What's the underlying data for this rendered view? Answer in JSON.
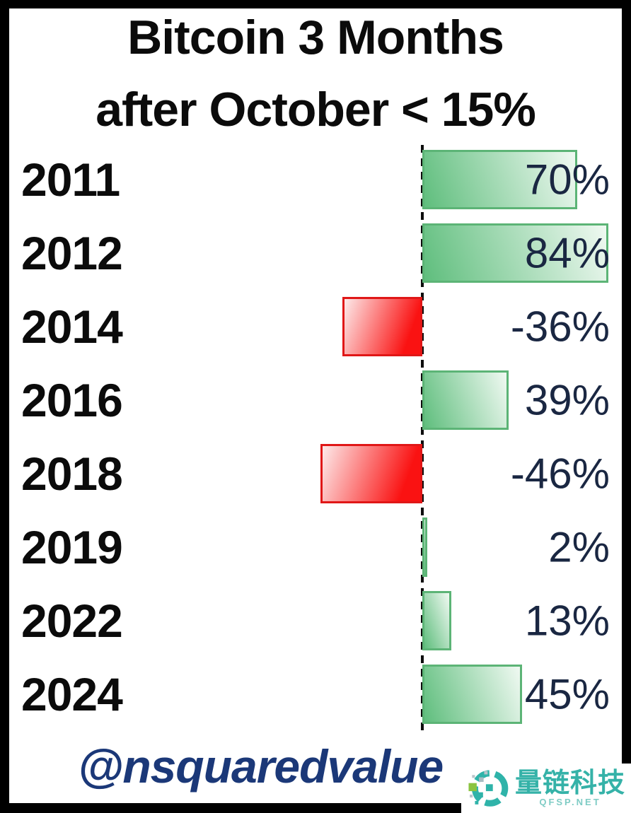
{
  "title": {
    "line1": "Bitcoin 3 Months",
    "line2": "after October < 15%"
  },
  "watermark": {
    "handle": "@nsquaredvalue",
    "color": "#1b3878"
  },
  "logo": {
    "name": "量链科技",
    "site": "QFSP.NET",
    "teal": "#35b2a8",
    "site_color": "#7fccc5",
    "green": "#8bc440"
  },
  "chart_data": {
    "type": "bar",
    "orientation": "horizontal",
    "title": "Bitcoin 3 Months after October < 15%",
    "categories": [
      "2011",
      "2012",
      "2014",
      "2016",
      "2018",
      "2019",
      "2022",
      "2024"
    ],
    "values": [
      70,
      84,
      -36,
      39,
      -46,
      2,
      13,
      45
    ],
    "value_labels": [
      "70%",
      "84%",
      "-36%",
      "39%",
      "-46%",
      "2%",
      "13%",
      "45%"
    ],
    "xlim": [
      -50,
      90
    ],
    "baseline": 0,
    "grid": false,
    "legend": false,
    "axis_style": "dashed-vertical-zero-line",
    "positive_color": {
      "start": "#5fbe7d",
      "end": "#f0f9f2",
      "border": "#5cb476"
    },
    "negative_color": {
      "start": "#fdeaea",
      "end": "#fa1212",
      "border": "#e01717"
    },
    "label_color": "#1a2742",
    "category_color": "#0b0b0b"
  }
}
